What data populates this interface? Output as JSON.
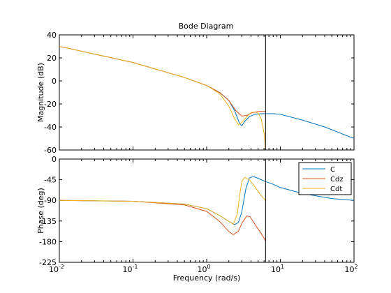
{
  "chart_data": {
    "type": "line",
    "title": "Bode Diagram",
    "xlabel": "Frequency  (rad/s)",
    "xscale": "log",
    "xlim": [
      0.01,
      100
    ],
    "x_ticks": [
      {
        "value": 0.01,
        "base": "10",
        "exp": "-2"
      },
      {
        "value": 0.1,
        "base": "10",
        "exp": "-1"
      },
      {
        "value": 1,
        "base": "10",
        "exp": "0"
      },
      {
        "value": 10,
        "base": "10",
        "exp": "1"
      },
      {
        "value": 100,
        "base": "10",
        "exp": "2"
      }
    ],
    "marker_line": {
      "x": 6.3,
      "color": "#000000"
    },
    "legend": {
      "placement": "top-right",
      "panel": "phase"
    },
    "panels": [
      {
        "id": "magnitude",
        "ylabel": "Magnitude (dB)",
        "ylim": [
          -60,
          40
        ],
        "yticks": [
          40,
          20,
          0,
          -20,
          -40,
          -60
        ],
        "series": [
          {
            "name": "C",
            "color": "#0072BD",
            "points": [
              [
                0.01,
                30
              ],
              [
                0.1,
                16
              ],
              [
                0.5,
                3
              ],
              [
                1,
                -4
              ],
              [
                1.5,
                -10
              ],
              [
                2,
                -17
              ],
              [
                2.4,
                -26
              ],
              [
                2.8,
                -37
              ],
              [
                3.0,
                -39
              ],
              [
                3.3,
                -35
              ],
              [
                3.8,
                -31
              ],
              [
                4.5,
                -29
              ],
              [
                5.5,
                -28.5
              ],
              [
                6.3,
                -28.5
              ],
              [
                8,
                -28.5
              ],
              [
                10,
                -29
              ],
              [
                20,
                -34
              ],
              [
                40,
                -40
              ],
              [
                100,
                -50
              ]
            ]
          },
          {
            "name": "Cdz",
            "color": "#D95319",
            "points": [
              [
                0.01,
                30
              ],
              [
                0.1,
                16
              ],
              [
                0.5,
                3
              ],
              [
                1,
                -4
              ],
              [
                1.5,
                -10
              ],
              [
                2,
                -17
              ],
              [
                2.5,
                -26
              ],
              [
                3.0,
                -30.5
              ],
              [
                3.5,
                -30
              ],
              [
                4.0,
                -28
              ],
              [
                5,
                -26.5
              ],
              [
                6.3,
                -26.5
              ]
            ]
          },
          {
            "name": "Cdt",
            "color": "#EDB120",
            "points": [
              [
                0.01,
                30
              ],
              [
                0.1,
                16
              ],
              [
                0.5,
                3
              ],
              [
                1,
                -4
              ],
              [
                1.5,
                -11
              ],
              [
                2,
                -22
              ],
              [
                2.4,
                -33
              ],
              [
                2.7,
                -38
              ],
              [
                3.0,
                -36
              ],
              [
                3.5,
                -31
              ],
              [
                4.0,
                -27.5
              ],
              [
                4.5,
                -27
              ],
              [
                5.0,
                -28
              ],
              [
                5.5,
                -33
              ],
              [
                6.0,
                -45
              ],
              [
                6.3,
                -60
              ]
            ]
          }
        ]
      },
      {
        "id": "phase",
        "ylabel": "Phase (deg)",
        "ylim": [
          -225,
          0
        ],
        "yticks": [
          0,
          -45,
          -90,
          -135,
          -180,
          -225
        ],
        "series": [
          {
            "name": "C",
            "color": "#0072BD",
            "points": [
              [
                0.01,
                -90
              ],
              [
                0.1,
                -92
              ],
              [
                0.5,
                -98
              ],
              [
                1,
                -108
              ],
              [
                1.5,
                -123
              ],
              [
                2,
                -136
              ],
              [
                2.4,
                -143
              ],
              [
                2.7,
                -138
              ],
              [
                3.0,
                -115
              ],
              [
                3.4,
                -65
              ],
              [
                3.8,
                -41
              ],
              [
                4.3,
                -38
              ],
              [
                5,
                -42
              ],
              [
                6.3,
                -49
              ],
              [
                8,
                -55
              ],
              [
                10,
                -62
              ],
              [
                20,
                -75
              ],
              [
                50,
                -86
              ],
              [
                100,
                -90
              ]
            ]
          },
          {
            "name": "Cdz",
            "color": "#D95319",
            "points": [
              [
                0.01,
                -90
              ],
              [
                0.1,
                -92
              ],
              [
                0.5,
                -100
              ],
              [
                1,
                -114
              ],
              [
                1.5,
                -136
              ],
              [
                2,
                -158
              ],
              [
                2.3,
                -165
              ],
              [
                2.7,
                -157
              ],
              [
                3.0,
                -140
              ],
              [
                3.5,
                -124
              ],
              [
                3.9,
                -126
              ],
              [
                4.5,
                -142
              ],
              [
                5.5,
                -162
              ],
              [
                6.3,
                -178
              ]
            ]
          },
          {
            "name": "Cdt",
            "color": "#EDB120",
            "points": [
              [
                0.01,
                -90
              ],
              [
                0.1,
                -92
              ],
              [
                0.5,
                -98
              ],
              [
                1,
                -108
              ],
              [
                1.5,
                -123
              ],
              [
                2,
                -136
              ],
              [
                2.3,
                -142
              ],
              [
                2.6,
                -120
              ],
              [
                2.8,
                -80
              ],
              [
                3.0,
                -48
              ],
              [
                3.3,
                -40
              ],
              [
                3.8,
                -45
              ],
              [
                4.5,
                -60
              ],
              [
                5.5,
                -80
              ],
              [
                6.3,
                -90
              ]
            ]
          }
        ]
      }
    ]
  }
}
